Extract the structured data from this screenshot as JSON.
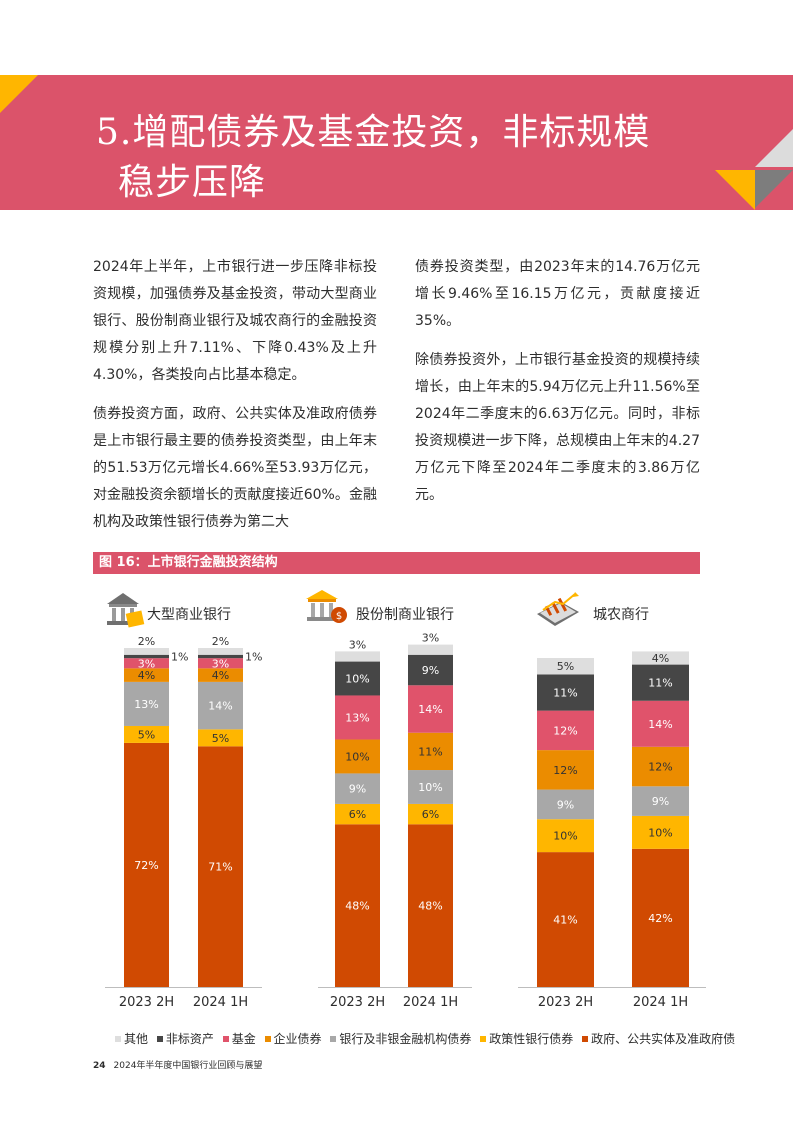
{
  "heading": {
    "number": "5.",
    "line1": "增配债券及基金投资，非标规模",
    "line2": "稳步压降"
  },
  "body": {
    "left_p1": "2024年上半年，上市银行进一步压降非标投资规模，加强债券及基金投资，带动大型商业银行、股份制商业银行及城农商行的金融投资规模分别上升7.11%、下降0.43%及上升4.30%，各类投向占比基本稳定。",
    "left_p2": "债券投资方面，政府、公共实体及准政府债券是上市银行最主要的债券投资类型，由上年末的51.53万亿元增长4.66%至53.93万亿元，对金融投资余额增长的贡献度接近60%。金融机构及政策性银行债券为第二大",
    "right_p1": "债券投资类型，由2023年末的14.76万亿元增长9.46%至16.15万亿元，贡献度接近35%。",
    "right_p2": "除债券投资外，上市银行基金投资的规模持续增长，由上年末的5.94万亿元上升11.56%至2024年二季度末的6.63万亿元。同时，非标投资规模进一步下降，总规模由上年末的4.27万亿元下降至2024年二季度末的3.86万亿元。"
  },
  "figure": {
    "title": "图 16：上市银行金融投资结构"
  },
  "chart_data": [
    {
      "type": "bar",
      "stacked": true,
      "title": "大型商业银行",
      "icon": "bank-building-icon",
      "categories": [
        "2023 2H",
        "2024 1H"
      ],
      "ylim": [
        0,
        100
      ],
      "series": [
        {
          "name": "政府、公共实体及准政府债",
          "color": "#d04a02",
          "values": [
            72,
            71
          ]
        },
        {
          "name": "政策性银行债券",
          "color": "#ffb600",
          "values": [
            5,
            5
          ]
        },
        {
          "name": "银行及非银金融机构债券",
          "color": "#a8a8a8",
          "values": [
            13,
            14
          ]
        },
        {
          "name": "企业债券",
          "color": "#eb8c00",
          "values": [
            4,
            4
          ]
        },
        {
          "name": "基金",
          "color": "#e0536b",
          "values": [
            3,
            3
          ]
        },
        {
          "name": "非标资产",
          "color": "#464646",
          "values": [
            1,
            1
          ]
        },
        {
          "name": "其他",
          "color": "#dedede",
          "values": [
            2,
            2
          ]
        }
      ]
    },
    {
      "type": "bar",
      "stacked": true,
      "title": "股份制商业银行",
      "icon": "money-bag-bank-icon",
      "categories": [
        "2023 2H",
        "2024 1H"
      ],
      "ylim": [
        0,
        100
      ],
      "series": [
        {
          "name": "政府、公共实体及准政府债",
          "color": "#d04a02",
          "values": [
            48,
            48
          ]
        },
        {
          "name": "政策性银行债券",
          "color": "#ffb600",
          "values": [
            6,
            6
          ]
        },
        {
          "name": "银行及非银金融机构债券",
          "color": "#a8a8a8",
          "values": [
            9,
            10
          ]
        },
        {
          "name": "企业债券",
          "color": "#eb8c00",
          "values": [
            10,
            11
          ]
        },
        {
          "name": "基金",
          "color": "#e0536b",
          "values": [
            13,
            14
          ]
        },
        {
          "name": "非标资产",
          "color": "#464646",
          "values": [
            10,
            9
          ]
        },
        {
          "name": "其他",
          "color": "#dedede",
          "values": [
            3,
            3
          ]
        }
      ]
    },
    {
      "type": "bar",
      "stacked": true,
      "title": "城农商行",
      "icon": "tablet-growth-chart-icon",
      "categories": [
        "2023 2H",
        "2024 1H"
      ],
      "ylim": [
        0,
        100
      ],
      "series": [
        {
          "name": "政府、公共实体及准政府债",
          "color": "#d04a02",
          "values": [
            41,
            42
          ]
        },
        {
          "name": "政策性银行债券",
          "color": "#ffb600",
          "values": [
            10,
            10
          ]
        },
        {
          "name": "银行及非银金融机构债券",
          "color": "#a8a8a8",
          "values": [
            9,
            9
          ]
        },
        {
          "name": "企业债券",
          "color": "#eb8c00",
          "values": [
            12,
            12
          ]
        },
        {
          "name": "基金",
          "color": "#e0536b",
          "values": [
            12,
            14
          ]
        },
        {
          "name": "非标资产",
          "color": "#464646",
          "values": [
            11,
            11
          ]
        },
        {
          "name": "其他",
          "color": "#dedede",
          "values": [
            5,
            4
          ]
        }
      ]
    }
  ],
  "legend": [
    {
      "label": "其他",
      "color": "#dedede"
    },
    {
      "label": "非标资产",
      "color": "#464646"
    },
    {
      "label": "基金",
      "color": "#e0536b"
    },
    {
      "label": "企业债券",
      "color": "#eb8c00"
    },
    {
      "label": "银行及非银金融机构债券",
      "color": "#a8a8a8"
    },
    {
      "label": "政策性银行债券",
      "color": "#ffb600"
    },
    {
      "label": "政府、公共实体及准政府债",
      "color": "#d04a02"
    }
  ],
  "footer": {
    "page": "24",
    "text": "2024年半年度中国银行业回顾与展望"
  },
  "colors": {
    "banner": "#db536a",
    "accent_orange": "#ffb600",
    "accent_gray": "#bdbdbd",
    "accent_dark": "#7d7d7d"
  }
}
